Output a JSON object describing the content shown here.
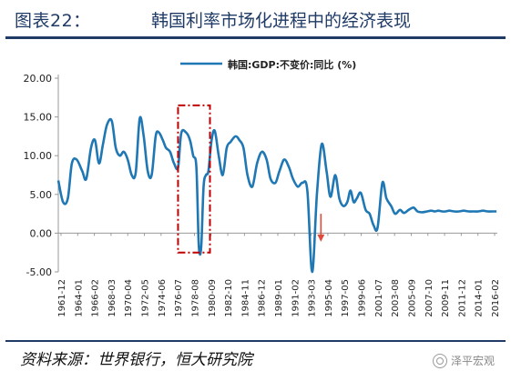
{
  "header": {
    "figure_label": "图表22：",
    "title": "韩国利率市场化进程中的经济表现"
  },
  "footer": {
    "source": "资料来源：世界银行，恒大研究院",
    "watermark": "泽平宏观"
  },
  "colors": {
    "series": "#1f77b4",
    "highlight_box": "#c00000",
    "arrow": "#e04b3c",
    "frame": "#1f3b66"
  },
  "chart_data": {
    "type": "line",
    "title": "",
    "xlabel": "",
    "ylabel": "",
    "ylim": [
      -5,
      20
    ],
    "yticks": [
      "20.00",
      "15.00",
      "10.00",
      "5.00",
      "0.00",
      "-5.00"
    ],
    "ytick_values": [
      20,
      15,
      10,
      5,
      0,
      -5
    ],
    "xticks": [
      "1961-12",
      "1964-01",
      "1966-02",
      "1968-03",
      "1970-04",
      "1972-05",
      "1974-06",
      "1976-07",
      "1978-08",
      "1980-09",
      "1982-10",
      "1984-11",
      "1986-12",
      "1989-01",
      "1991-02",
      "1993-03",
      "1995-04",
      "1997-05",
      "1999-06",
      "2001-07",
      "2003-08",
      "2005-09",
      "2007-10",
      "2009-11",
      "2011-12",
      "2014-01",
      "2016-02"
    ],
    "legend": "top-center",
    "grid": false,
    "series": [
      {
        "name": "韩国:GDP:不变价:同比 (%)",
        "x": [
          1961.9,
          1962.5,
          1963.1,
          1963.6,
          1964.2,
          1964.9,
          1965.4,
          1966.0,
          1966.5,
          1967.0,
          1967.5,
          1968.0,
          1968.6,
          1969.1,
          1969.6,
          1970.1,
          1970.6,
          1971.1,
          1971.6,
          1972.1,
          1972.6,
          1973.1,
          1973.6,
          1974.1,
          1974.5,
          1975.0,
          1975.4,
          1975.9,
          1976.4,
          1976.9,
          1977.3,
          1977.9,
          1978.4,
          1978.8,
          1979.2,
          1979.5,
          1979.8,
          1980.1,
          1980.4,
          1980.7,
          1981.1,
          1981.5,
          1982.0,
          1982.5,
          1983.0,
          1983.5,
          1984.1,
          1984.6,
          1985.1,
          1985.6,
          1986.2,
          1986.8,
          1987.4,
          1988.0,
          1988.5,
          1989.1,
          1989.6,
          1990.2,
          1990.8,
          1991.3,
          1991.9,
          1992.5,
          1993.1,
          1993.7,
          1994.3,
          1994.9,
          1995.5,
          1996.0,
          1996.6,
          1997.1,
          1997.6,
          1998.1,
          1998.5,
          1998.9,
          1999.3,
          1999.8,
          2000.4,
          2000.9,
          2001.4,
          2001.9,
          2002.5,
          2003.0,
          2003.6,
          2004.1,
          2004.7,
          2005.2,
          2005.8,
          2006.4,
          2006.9,
          2007.5,
          2008.1,
          2008.6,
          2009.1,
          2009.5,
          2010.0,
          2010.4,
          2010.9,
          2011.5,
          2012.1,
          2012.7,
          2013.3,
          2013.9,
          2014.5,
          2015.1,
          2015.7,
          2016.3,
          2016.8
        ],
        "values": [
          6.8,
          4.0,
          4.5,
          9.0,
          9.5,
          8.0,
          7.0,
          11.0,
          12.0,
          9.0,
          11.5,
          14.0,
          14.5,
          11.0,
          10.0,
          10.5,
          9.5,
          7.5,
          7.8,
          14.8,
          12.5,
          8.0,
          7.5,
          12.5,
          13.0,
          12.0,
          11.0,
          10.5,
          9.0,
          8.5,
          12.9,
          13.0,
          12.0,
          10.0,
          8.5,
          -1.5,
          -1.8,
          6.0,
          7.5,
          8.0,
          12.0,
          13.2,
          10.0,
          7.5,
          11.0,
          11.8,
          12.5,
          12.0,
          11.0,
          7.5,
          6.0,
          9.0,
          10.5,
          9.5,
          7.0,
          6.5,
          8.0,
          9.5,
          8.5,
          7.0,
          6.0,
          6.5,
          5.5,
          -5.0,
          5.0,
          11.5,
          8.0,
          4.7,
          7.5,
          4.5,
          3.5,
          4.0,
          5.5,
          4.0,
          4.5,
          5.2,
          3.0,
          2.5,
          1.0,
          0.7,
          6.5,
          4.5,
          3.5,
          2.5,
          3.0,
          2.6,
          3.0,
          3.3,
          2.8,
          2.7,
          2.8,
          2.9,
          2.8,
          2.9,
          2.8,
          2.8,
          2.9,
          2.8,
          2.8,
          2.9,
          2.8,
          2.8,
          2.8,
          2.9,
          2.8,
          2.8,
          2.8
        ]
      }
    ],
    "annotations": {
      "highlight_box_x": [
        1976.9,
        1980.9
      ],
      "highlight_box_y": [
        -2.5,
        16.5
      ],
      "arrow_x": 1994.8,
      "arrow_y": [
        2.5,
        -1.0
      ]
    }
  }
}
